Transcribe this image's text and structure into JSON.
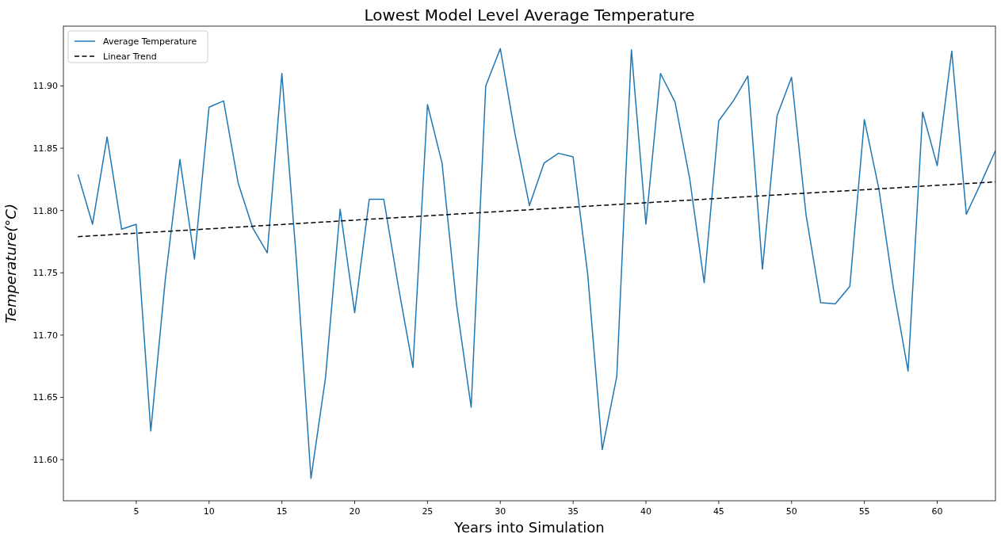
{
  "chart_data": {
    "type": "line",
    "title": "Lowest Model Level Average Temperature",
    "xlabel": "Years into Simulation",
    "ylabel": "Temperature(°C)",
    "x": [
      1,
      2,
      3,
      4,
      5,
      6,
      7,
      8,
      9,
      10,
      11,
      12,
      13,
      14,
      15,
      16,
      17,
      18,
      19,
      20,
      21,
      22,
      23,
      24,
      25,
      26,
      27,
      28,
      29,
      30,
      31,
      32,
      33,
      34,
      35,
      36,
      37,
      38,
      39,
      40,
      41,
      42,
      43,
      44,
      45,
      46,
      47,
      48,
      49,
      50,
      51,
      52,
      53,
      54,
      55,
      56,
      57,
      58,
      59,
      60,
      61,
      62,
      63,
      64
    ],
    "series": [
      {
        "name": "Average Temperature",
        "color": "#1f77b4",
        "line_style": "solid",
        "values": [
          11.829,
          11.789,
          11.859,
          11.785,
          11.789,
          11.623,
          11.745,
          11.841,
          11.761,
          11.883,
          11.888,
          11.822,
          11.786,
          11.766,
          11.91,
          11.76,
          11.585,
          11.666,
          11.801,
          11.718,
          11.809,
          11.809,
          11.739,
          11.674,
          11.885,
          11.838,
          11.724,
          11.642,
          11.9,
          11.93,
          11.862,
          11.804,
          11.838,
          11.846,
          11.843,
          11.749,
          11.608,
          11.667,
          11.929,
          11.789,
          11.91,
          11.887,
          11.826,
          11.742,
          11.872,
          11.888,
          11.908,
          11.753,
          11.876,
          11.907,
          11.796,
          11.726,
          11.725,
          11.739,
          11.873,
          11.817,
          11.737,
          11.671,
          11.879,
          11.836,
          11.928,
          11.797,
          11.822,
          11.848
        ]
      },
      {
        "name": "Linear Trend",
        "color": "#000000",
        "line_style": "dashed",
        "x": [
          1,
          64
        ],
        "values": [
          11.779,
          11.823
        ]
      }
    ],
    "xlim": [
      0,
      64
    ],
    "xticks": [
      5,
      10,
      15,
      20,
      25,
      30,
      35,
      40,
      45,
      50,
      55,
      60
    ],
    "ylim": [
      11.567,
      11.948
    ],
    "yticks": [
      {
        "value": 11.6,
        "label": "11.60"
      },
      {
        "value": 11.65,
        "label": "11.65"
      },
      {
        "value": 11.7,
        "label": "11.70"
      },
      {
        "value": 11.75,
        "label": "11.75"
      },
      {
        "value": 11.8,
        "label": "11.80"
      },
      {
        "value": 11.85,
        "label": "11.85"
      },
      {
        "value": 11.9,
        "label": "11.90"
      }
    ],
    "legend": "top left",
    "grid": false,
    "marker": "none"
  }
}
